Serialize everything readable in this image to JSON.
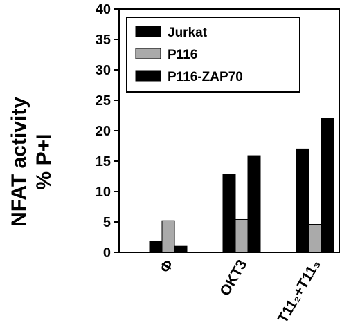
{
  "chart_data": {
    "type": "bar",
    "title": "",
    "xlabel": "",
    "ylabel": [
      "NFAT activity",
      "% P+I"
    ],
    "ylim": [
      0,
      40
    ],
    "yticks": [
      0,
      5,
      10,
      15,
      20,
      25,
      30,
      35,
      40
    ],
    "categories": [
      "Φ",
      "OKT3",
      "T11₂+T11₃"
    ],
    "series": [
      {
        "name": "Jurkat",
        "values": [
          1.8,
          12.8,
          17.0
        ],
        "color": "#000000"
      },
      {
        "name": "P116",
        "values": [
          5.2,
          5.4,
          4.6
        ],
        "color": "#aaaaaa"
      },
      {
        "name": "P116-ZAP70",
        "values": [
          1.0,
          15.9,
          22.1
        ],
        "color": "#000000"
      }
    ],
    "legend": "top-left",
    "grid": false
  }
}
